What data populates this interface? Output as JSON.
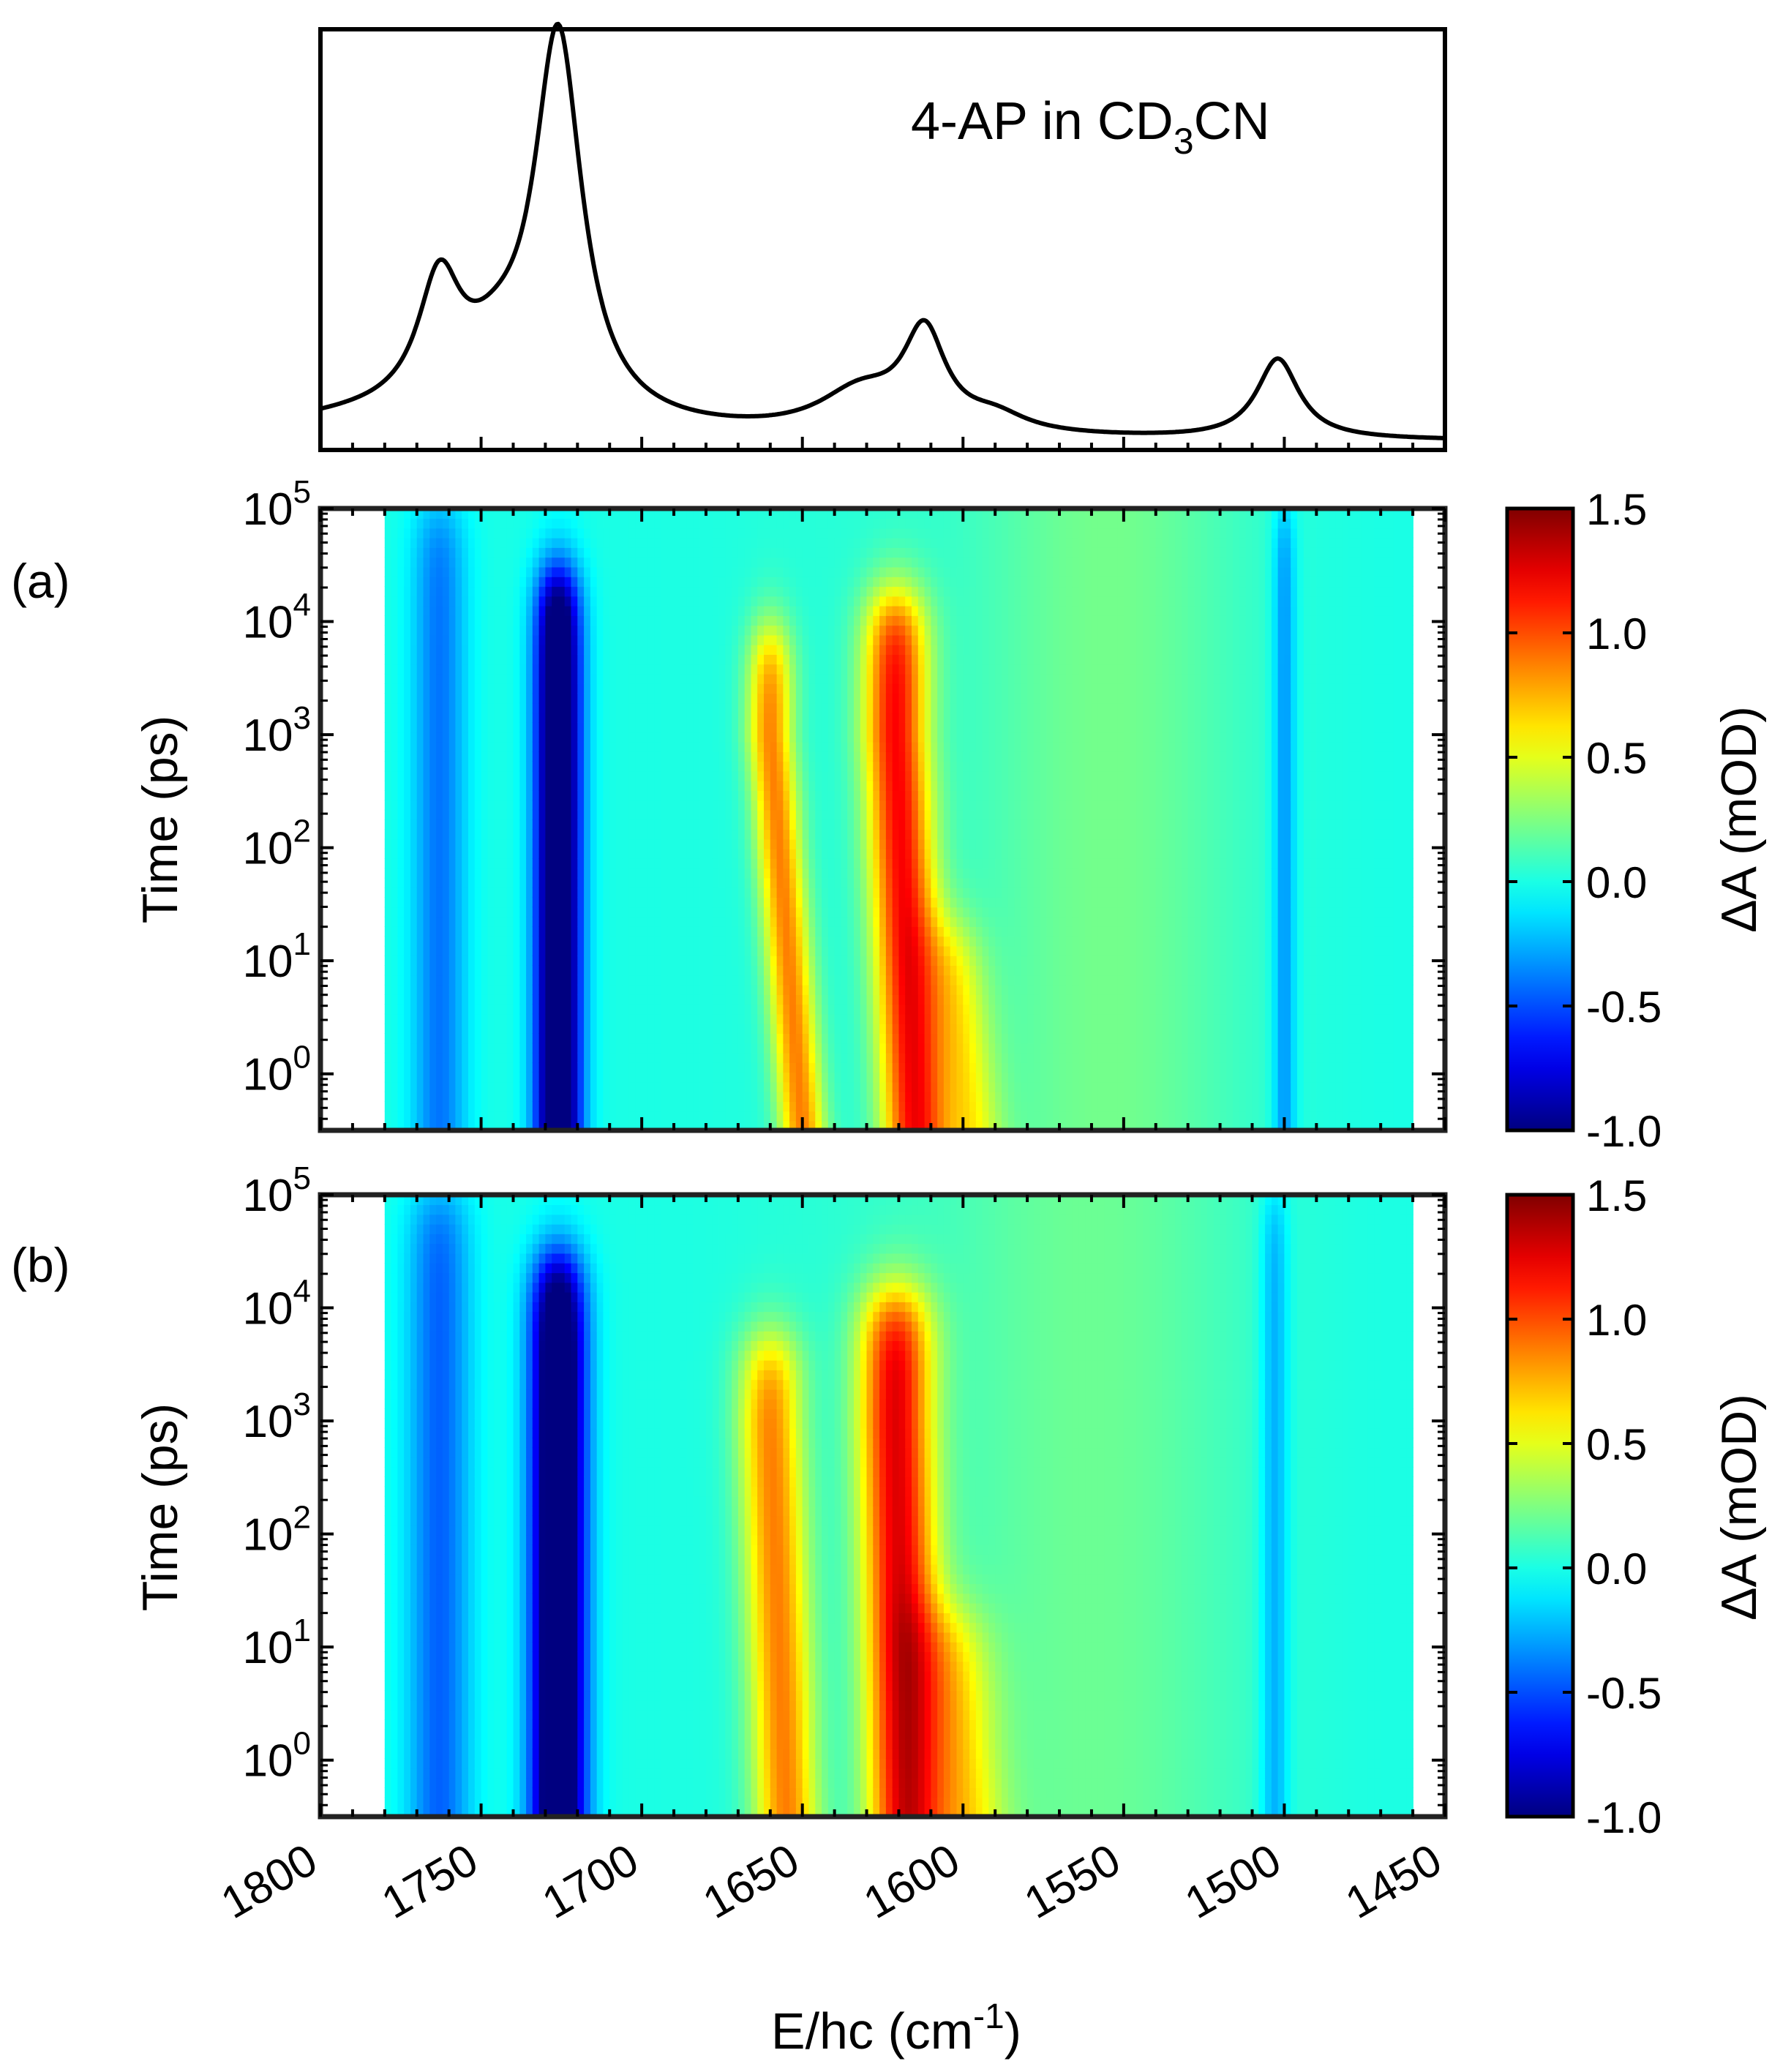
{
  "chart_data": [
    {
      "type": "line",
      "panel": "top",
      "title": "",
      "annotation": {
        "pre": "4-AP in CD",
        "sub": "3",
        "post": "CN"
      },
      "xlim": [
        1800,
        1450
      ],
      "ylim": [
        0,
        1.05
      ],
      "y_tick_labels": "none",
      "peaks": [
        {
          "center": 1775,
          "height": 0.055,
          "width": 60
        },
        {
          "center": 1763,
          "height": 0.3,
          "width": 8
        },
        {
          "center": 1745,
          "height": 0.12,
          "width": 14
        },
        {
          "center": 1726,
          "height": 0.95,
          "width": 9
        },
        {
          "center": 1632,
          "height": 0.1,
          "width": 16
        },
        {
          "center": 1612,
          "height": 0.24,
          "width": 8
        },
        {
          "center": 1590,
          "height": 0.04,
          "width": 12
        },
        {
          "center": 1502,
          "height": 0.2,
          "width": 8
        }
      ],
      "baseline": 0.02
    },
    {
      "type": "heatmap",
      "panel_label": "(a)",
      "xlabel": "E/hc (cm-1)",
      "ylabel": "Time (ps)",
      "xlim": [
        1800,
        1450
      ],
      "x_data_range": [
        1780,
        1460
      ],
      "ylim_log10": [
        -0.5,
        5
      ],
      "y_tick_labels": [
        {
          "base": "10",
          "exp": "5"
        },
        {
          "base": "10",
          "exp": "4"
        },
        {
          "base": "10",
          "exp": "3"
        },
        {
          "base": "10",
          "exp": "2"
        },
        {
          "base": "10",
          "exp": "1"
        },
        {
          "base": "10",
          "exp": "0"
        }
      ],
      "colorbar": {
        "label": "ΔA (mOD)",
        "range": [
          -1.0,
          1.5
        ],
        "ticks": [
          "1.5",
          "1.0",
          "0.5",
          "0.0",
          "-0.5",
          "-1.0"
        ]
      },
      "features": [
        {
          "kind": "bleach",
          "x": 1726,
          "amp": -1.4,
          "wx": 5,
          "t_end": 4.4
        },
        {
          "kind": "bleach",
          "x": 1763,
          "amp": -0.4,
          "wx": 6,
          "t_end": 5
        },
        {
          "kind": "bleach",
          "x": 1500,
          "amp": -0.35,
          "wx": 2.5,
          "t_end": 5
        },
        {
          "kind": "absorption",
          "x_early": 1650,
          "x_late": 1660,
          "amp": 0.85,
          "wx": 5,
          "t_end": 3.9
        },
        {
          "kind": "absorption",
          "x_early": 1615,
          "x_late": 1621,
          "amp": 1.15,
          "wx": 7,
          "t_end": 4.2
        },
        {
          "kind": "absorption",
          "x_early": 1598,
          "x_late": 1610,
          "amp": 0.5,
          "wx": 7,
          "t_end": 1.3
        },
        {
          "kind": "broad",
          "x": 1555,
          "amp": 0.22,
          "wx": 30
        }
      ]
    },
    {
      "type": "heatmap",
      "panel_label": "(b)",
      "xlabel": "E/hc (cm-1)",
      "ylabel": "Time (ps)",
      "xlim": [
        1800,
        1450
      ],
      "x_data_range": [
        1780,
        1460
      ],
      "ylim_log10": [
        -0.5,
        5
      ],
      "y_tick_labels": [
        {
          "base": "10",
          "exp": "5"
        },
        {
          "base": "10",
          "exp": "4"
        },
        {
          "base": "10",
          "exp": "3"
        },
        {
          "base": "10",
          "exp": "2"
        },
        {
          "base": "10",
          "exp": "1"
        },
        {
          "base": "10",
          "exp": "0"
        }
      ],
      "colorbar": {
        "label": "ΔA (mOD)",
        "range": [
          -1.0,
          1.5
        ],
        "ticks": [
          "1.5",
          "1.0",
          "0.5",
          "0.0",
          "-0.5",
          "-1.0"
        ]
      },
      "features": [
        {
          "kind": "bleach",
          "x": 1726,
          "amp": -1.4,
          "wx": 6,
          "t_end": 4.4
        },
        {
          "kind": "bleach",
          "x": 1763,
          "amp": -0.45,
          "wx": 7,
          "t_end": 5
        },
        {
          "kind": "bleach",
          "x": 1503,
          "amp": -0.3,
          "wx": 3,
          "t_end": 5
        },
        {
          "kind": "absorption",
          "x_early": 1655,
          "x_late": 1660,
          "amp": 0.85,
          "wx": 7,
          "t_end": 3.7
        },
        {
          "kind": "absorption",
          "x_early": 1618,
          "x_late": 1621,
          "amp": 1.2,
          "wx": 8,
          "t_end": 4.1
        },
        {
          "kind": "absorption",
          "x_early": 1600,
          "x_late": 1610,
          "amp": 0.55,
          "wx": 9,
          "t_end": 1.3
        },
        {
          "kind": "broad",
          "x": 1560,
          "amp": 0.2,
          "wx": 35
        }
      ]
    }
  ],
  "x_axis": {
    "label_pre": "E/hc (cm",
    "label_sup": "-1",
    "label_post": ")",
    "ticks": [
      "1800",
      "1750",
      "1700",
      "1650",
      "1600",
      "1550",
      "1500",
      "1450"
    ]
  }
}
